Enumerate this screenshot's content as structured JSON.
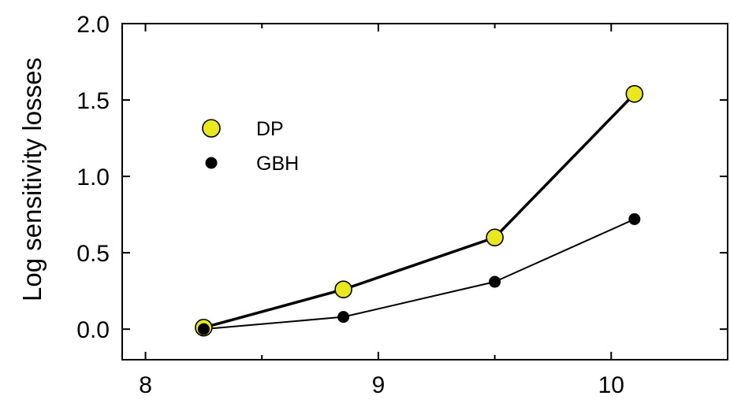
{
  "chart_data": {
    "type": "line",
    "title": "",
    "xlabel": "",
    "ylabel": "Log sensitivity losses",
    "xlim": [
      7.9,
      10.5
    ],
    "ylim": [
      -0.2,
      2.0
    ],
    "xticks": [
      8,
      9,
      10
    ],
    "xticklabels": [
      "8",
      "9",
      "10"
    ],
    "xminor": [
      8.5,
      9.5
    ],
    "yticks": [
      0.0,
      0.5,
      1.0,
      1.5,
      2.0
    ],
    "yticklabels": [
      "0.0",
      "0.5",
      "1.0",
      "1.5",
      "2.0"
    ],
    "grid": false,
    "legend_position": "upper-left",
    "series": [
      {
        "name": "DP",
        "color": "#e8e81c",
        "marker": "large-circle",
        "x": [
          8.25,
          8.85,
          9.5,
          10.1
        ],
        "y": [
          0.01,
          0.26,
          0.6,
          1.54
        ]
      },
      {
        "name": "GBH",
        "color": "#000000",
        "marker": "small-circle",
        "x": [
          8.25,
          8.85,
          9.5,
          10.1
        ],
        "y": [
          0.0,
          0.08,
          0.31,
          0.72
        ]
      }
    ]
  }
}
